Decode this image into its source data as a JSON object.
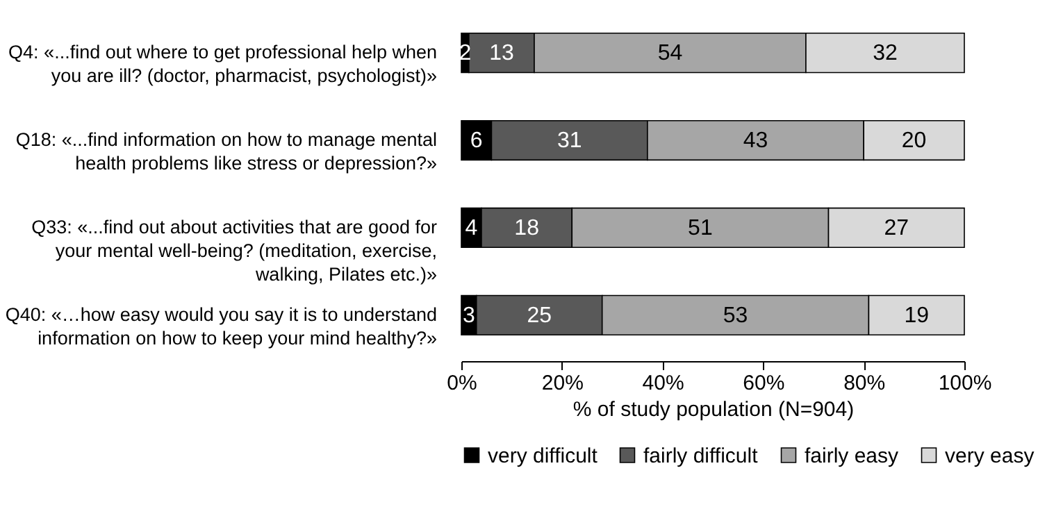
{
  "chart_data": {
    "type": "bar",
    "orientation": "horizontal",
    "stacked": true,
    "categories": [
      "Q4: «...find out where to get professional help when you are ill? (doctor, pharmacist, psychologist)»",
      "Q18: «...find information on how to manage mental health problems like stress or depression?»",
      "Q33: «...find out about activities that are good for your mental well-being? (meditation, exercise, walking, Pilates etc.)»",
      "Q40: «…how easy would you say it is to understand information on how to keep your mind healthy?»"
    ],
    "series": [
      {
        "name": "very difficult",
        "color": "#000000",
        "values": [
          1.5,
          6,
          4,
          3
        ],
        "value_labels": [
          "2",
          "6",
          "4",
          "3"
        ]
      },
      {
        "name": "fairly difficult",
        "color": "#595959",
        "values": [
          13,
          31,
          18,
          25
        ],
        "value_labels": [
          "13",
          "31",
          "18",
          "25"
        ]
      },
      {
        "name": "fairly easy",
        "color": "#a6a6a6",
        "values": [
          54,
          43,
          51,
          53
        ],
        "value_labels": [
          "54",
          "43",
          "51",
          "53"
        ]
      },
      {
        "name": "very easy",
        "color": "#d9d9d9",
        "values": [
          31.5,
          20,
          27,
          19
        ],
        "value_labels": [
          "32",
          "20",
          "27",
          "19"
        ]
      }
    ],
    "xlabel": "% of study population (N=904)",
    "xlim": [
      0,
      100
    ],
    "xticks": [
      {
        "value": 0,
        "label": "0%"
      },
      {
        "value": 20,
        "label": "20%"
      },
      {
        "value": 40,
        "label": "40%"
      },
      {
        "value": 60,
        "label": "60%"
      },
      {
        "value": 80,
        "label": "80%"
      },
      {
        "value": 100,
        "label": "100%"
      }
    ],
    "legend": "bottom",
    "grid": false
  }
}
